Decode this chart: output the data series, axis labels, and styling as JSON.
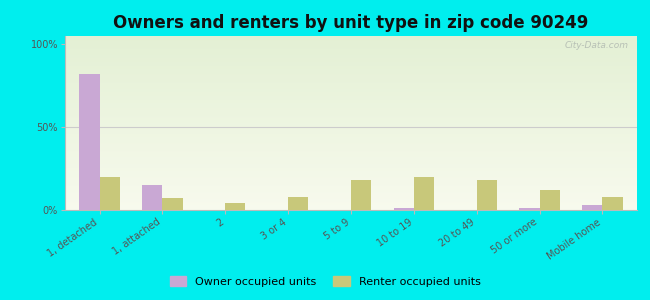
{
  "title": "Owners and renters by unit type in zip code 90249",
  "categories": [
    "1, detached",
    "1, attached",
    "2",
    "3 or 4",
    "5 to 9",
    "10 to 19",
    "20 to 49",
    "50 or more",
    "Mobile home"
  ],
  "owner_values": [
    82,
    15,
    0,
    0,
    0,
    1,
    0,
    1,
    3
  ],
  "renter_values": [
    20,
    7,
    4,
    8,
    18,
    20,
    18,
    12,
    8
  ],
  "owner_color": "#c9a8d4",
  "renter_color": "#c8c87a",
  "bg_outer": "#00eeee",
  "yticks": [
    0,
    50,
    100
  ],
  "ylabels": [
    "0%",
    "50%",
    "100%"
  ],
  "watermark": "City-Data.com",
  "legend_owner": "Owner occupied units",
  "legend_renter": "Renter occupied units",
  "title_fontsize": 12,
  "tick_fontsize": 7,
  "legend_fontsize": 8
}
